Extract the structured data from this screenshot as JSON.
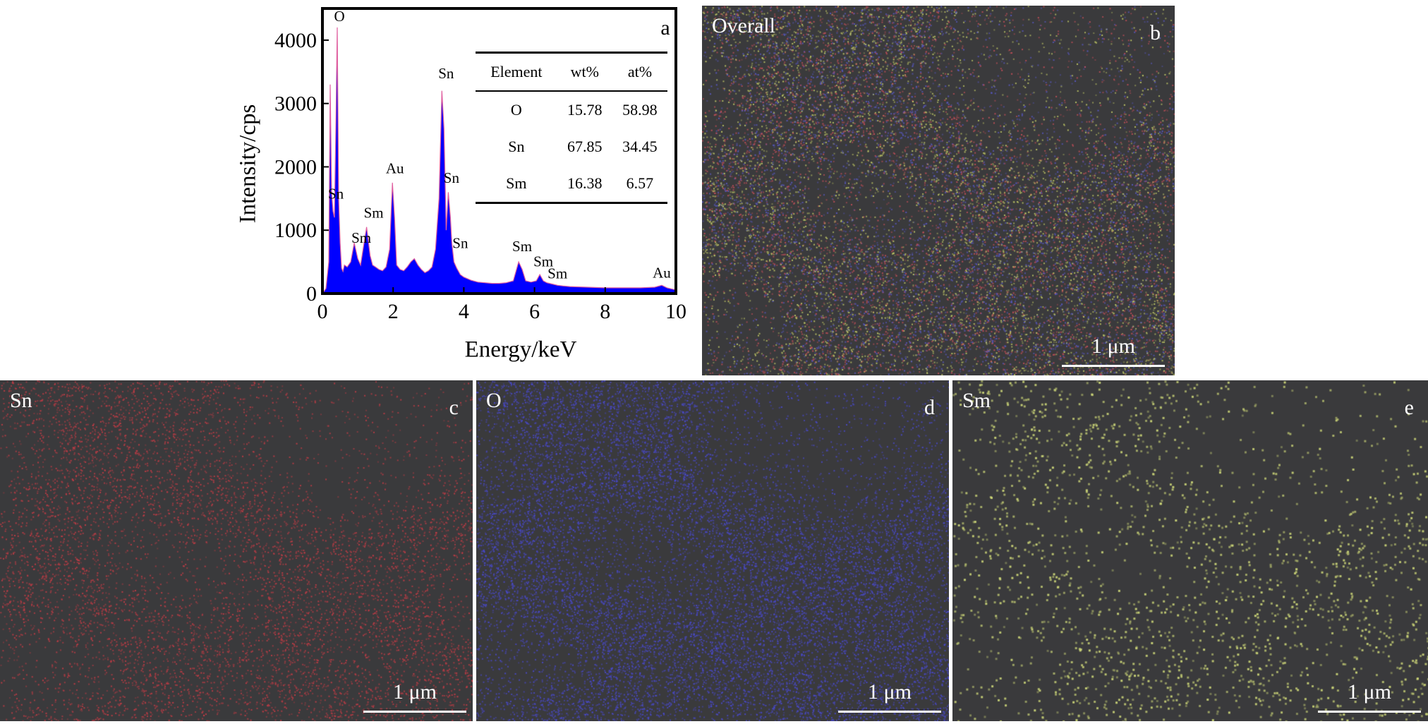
{
  "panels": {
    "a": {
      "letter": "a"
    },
    "b": {
      "title": "Overall",
      "letter": "b",
      "scale_label": "1 μm",
      "colors": [
        "#5a5ac8",
        "#c8505a",
        "#c8d068"
      ]
    },
    "c": {
      "title": "Sn",
      "letter": "c",
      "scale_label": "1 μm",
      "colors": [
        "#c83c46"
      ]
    },
    "d": {
      "title": "O",
      "letter": "d",
      "scale_label": "1 μm",
      "colors": [
        "#4a4ad2"
      ]
    },
    "e": {
      "title": "Sm",
      "letter": "e",
      "scale_label": "1 μm",
      "colors": [
        "#d2dc7a"
      ]
    }
  },
  "table": {
    "headers": [
      "Element",
      "wt%",
      "at%"
    ],
    "rows": [
      [
        "O",
        "15.78",
        "58.98"
      ],
      [
        "Sn",
        "67.85",
        "34.45"
      ],
      [
        "Sm",
        "16.38",
        "6.57"
      ]
    ]
  },
  "chart_data": {
    "type": "area",
    "xlabel": "Energy/keV",
    "ylabel": "Intensity/cps",
    "xlim": [
      0,
      10
    ],
    "ylim": [
      0,
      4500
    ],
    "xticks": [
      0,
      2,
      4,
      6,
      8,
      10
    ],
    "yticks": [
      0,
      1000,
      2000,
      3000,
      4000
    ],
    "fill_color": "#0000ff",
    "edge_color": "#e060a0",
    "spectrum": {
      "x": [
        0.0,
        0.1,
        0.18,
        0.22,
        0.26,
        0.3,
        0.34,
        0.38,
        0.42,
        0.46,
        0.5,
        0.54,
        0.58,
        0.62,
        0.7,
        0.8,
        0.9,
        1.0,
        1.08,
        1.15,
        1.25,
        1.35,
        1.42,
        1.5,
        1.6,
        1.7,
        1.8,
        1.9,
        1.98,
        2.04,
        2.1,
        2.2,
        2.3,
        2.4,
        2.5,
        2.6,
        2.7,
        2.8,
        2.9,
        3.0,
        3.1,
        3.2,
        3.3,
        3.38,
        3.44,
        3.5,
        3.56,
        3.62,
        3.66,
        3.72,
        3.8,
        3.9,
        4.0,
        4.2,
        4.4,
        4.6,
        4.8,
        5.0,
        5.2,
        5.4,
        5.55,
        5.65,
        5.75,
        5.9,
        6.05,
        6.15,
        6.25,
        6.35,
        6.5,
        6.65,
        6.8,
        7.0,
        7.5,
        8.0,
        8.5,
        9.0,
        9.4,
        9.6,
        9.75,
        9.9,
        10.0
      ],
      "y": [
        0,
        80,
        500,
        3300,
        1600,
        1300,
        1200,
        2600,
        4200,
        1500,
        800,
        400,
        350,
        450,
        420,
        500,
        800,
        550,
        450,
        700,
        1050,
        600,
        450,
        420,
        380,
        360,
        420,
        700,
        1750,
        1200,
        450,
        380,
        360,
        420,
        500,
        550,
        450,
        380,
        330,
        360,
        420,
        700,
        1500,
        3200,
        2600,
        1000,
        1600,
        1200,
        800,
        500,
        400,
        300,
        260,
        210,
        180,
        170,
        160,
        160,
        170,
        200,
        500,
        380,
        200,
        180,
        200,
        300,
        200,
        170,
        150,
        130,
        120,
        110,
        100,
        90,
        90,
        90,
        100,
        130,
        90,
        70,
        60
      ]
    },
    "annotations": [
      {
        "label": "O",
        "x": 0.48,
        "y": 4300
      },
      {
        "label": "Sn",
        "x": 0.38,
        "y": 1500
      },
      {
        "label": "Sm",
        "x": 1.1,
        "y": 800
      },
      {
        "label": "Sm",
        "x": 1.45,
        "y": 1200
      },
      {
        "label": "Au",
        "x": 2.05,
        "y": 1900
      },
      {
        "label": "Sn",
        "x": 3.5,
        "y": 3400
      },
      {
        "label": "Sn",
        "x": 3.65,
        "y": 1750
      },
      {
        "label": "Sn",
        "x": 3.9,
        "y": 720
      },
      {
        "label": "Sm",
        "x": 5.65,
        "y": 670
      },
      {
        "label": "Sm",
        "x": 6.25,
        "y": 430
      },
      {
        "label": "Sm",
        "x": 6.65,
        "y": 240
      },
      {
        "label": "Au",
        "x": 9.6,
        "y": 250
      }
    ]
  }
}
